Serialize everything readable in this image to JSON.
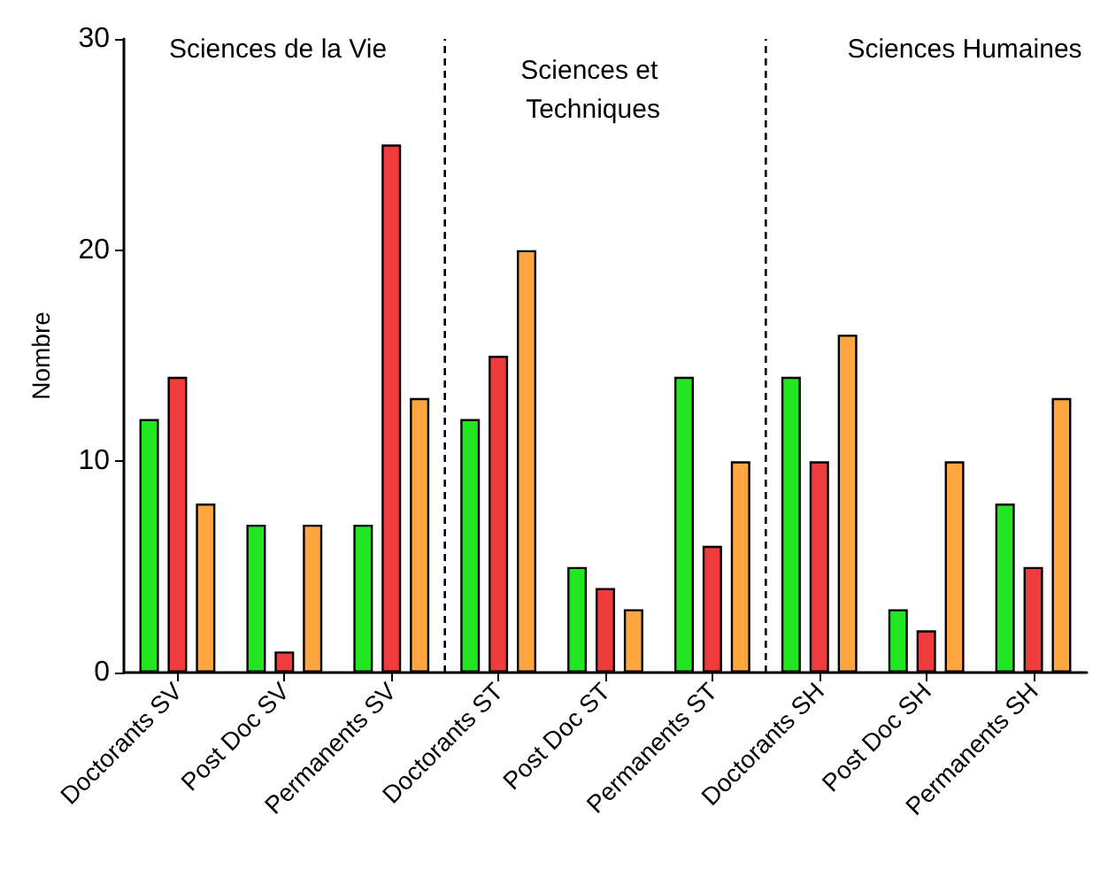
{
  "chart_data": {
    "type": "bar",
    "ylabel": "Nombre",
    "categories": [
      "Doctorants SV",
      "Post Doc SV",
      "Permanents SV",
      "Doctorants ST",
      "Post Doc ST",
      "Permanents ST",
      "Doctorants SH",
      "Post Doc SH",
      "Permanents SH"
    ],
    "series": [
      {
        "color": "#22e622",
        "values": [
          12,
          7,
          7,
          12,
          5,
          14,
          14,
          3,
          8
        ]
      },
      {
        "color": "#f03c3c",
        "values": [
          14,
          1,
          25,
          15,
          4,
          6,
          10,
          2,
          5
        ]
      },
      {
        "color": "#ffa640",
        "values": [
          8,
          7,
          13,
          20,
          3,
          10,
          16,
          10,
          13
        ]
      }
    ],
    "ylim": [
      0,
      30
    ],
    "yticks": [
      0,
      10,
      20,
      30
    ],
    "grid": false,
    "annotations": [
      "Sciences de la Vie",
      "Sciences et Techniques",
      "Sciences Humaines"
    ]
  }
}
